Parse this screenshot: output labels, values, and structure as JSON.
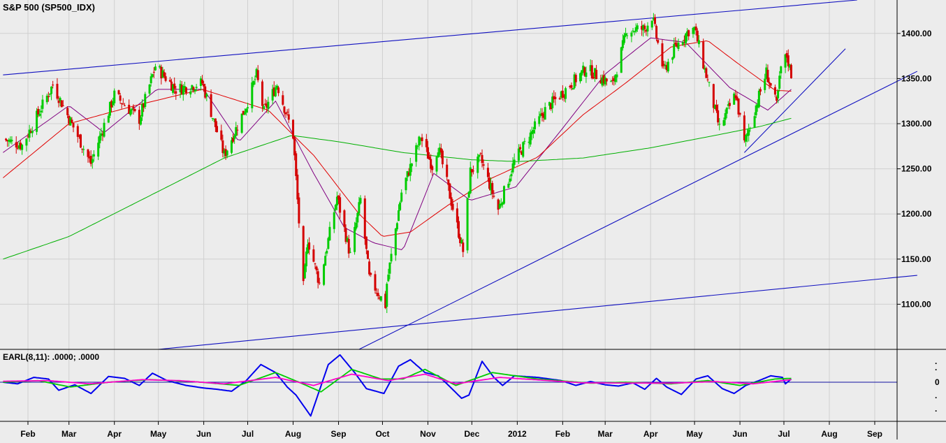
{
  "chart_data": [
    {
      "type": "candlestick",
      "title": "S&P 500 (SP500_IDX)",
      "y_ticks": [
        1100,
        1150,
        1200,
        1250,
        1300,
        1350,
        1400
      ],
      "y_tick_labels": [
        "1100.00",
        "1150.00",
        "1200.00",
        "1250.00",
        "1300.00",
        "1350.00",
        "1400.00"
      ],
      "ylim": [
        1050,
        1437
      ],
      "x_labels": [
        "Feb",
        "Mar",
        "Apr",
        "May",
        "Jun",
        "Jul",
        "Aug",
        "Sep",
        "Oct",
        "Nov",
        "Dec",
        "2012",
        "Feb",
        "Mar",
        "Apr",
        "May",
        "Jun",
        "Jul",
        "Aug",
        "Sep"
      ],
      "x_range": [
        "2011-01-15",
        "2012-09-28"
      ],
      "colors": {
        "up": "#00cc00",
        "down": "#d40000",
        "ma_short": "#800080",
        "ma_mid": "#e00000",
        "ma_long": "#00b000",
        "trendline": "#1010c0",
        "grid": "#d0d0d0"
      },
      "price_key_points": [
        [
          "2011-01-15",
          1283
        ],
        [
          "2011-01-28",
          1276
        ],
        [
          "2011-02-18",
          1343
        ],
        [
          "2011-03-16",
          1256
        ],
        [
          "2011-04-01",
          1332
        ],
        [
          "2011-04-18",
          1305
        ],
        [
          "2011-04-29",
          1364
        ],
        [
          "2011-05-13",
          1338
        ],
        [
          "2011-05-31",
          1345
        ],
        [
          "2011-06-15",
          1265
        ],
        [
          "2011-06-30",
          1320
        ],
        [
          "2011-07-07",
          1354
        ],
        [
          "2011-07-12",
          1313
        ],
        [
          "2011-07-21",
          1344
        ],
        [
          "2011-08-01",
          1287
        ],
        [
          "2011-08-08",
          1119
        ],
        [
          "2011-08-11",
          1172
        ],
        [
          "2011-08-19",
          1123
        ],
        [
          "2011-08-31",
          1219
        ],
        [
          "2011-09-09",
          1154
        ],
        [
          "2011-09-16",
          1216
        ],
        [
          "2011-09-22",
          1129
        ],
        [
          "2011-10-03",
          1099
        ],
        [
          "2011-10-04",
          1123
        ],
        [
          "2011-10-14",
          1224
        ],
        [
          "2011-10-27",
          1285
        ],
        [
          "2011-11-04",
          1253
        ],
        [
          "2011-11-08",
          1275
        ],
        [
          "2011-11-25",
          1159
        ],
        [
          "2011-11-30",
          1247
        ],
        [
          "2011-12-07",
          1261
        ],
        [
          "2011-12-19",
          1205
        ],
        [
          "2011-12-30",
          1258
        ],
        [
          "2012-01-20",
          1315
        ],
        [
          "2012-02-17",
          1361
        ],
        [
          "2012-03-06",
          1343
        ],
        [
          "2012-03-16",
          1404
        ],
        [
          "2012-03-28",
          1405
        ],
        [
          "2012-04-02",
          1419
        ],
        [
          "2012-04-10",
          1358
        ],
        [
          "2012-04-18",
          1385
        ],
        [
          "2012-04-27",
          1403
        ],
        [
          "2012-05-01",
          1405
        ],
        [
          "2012-05-18",
          1295
        ],
        [
          "2012-05-29",
          1333
        ],
        [
          "2012-06-04",
          1278
        ],
        [
          "2012-06-19",
          1357
        ],
        [
          "2012-06-26",
          1320
        ],
        [
          "2012-06-29",
          1362
        ],
        [
          "2012-07-03",
          1375
        ],
        [
          "2012-07-06",
          1355
        ]
      ],
      "moving_averages": [
        {
          "name": "",
          "color": "#800080",
          "points": [
            [
              "2011-01-15",
              1268
            ],
            [
              "2011-03-01",
              1320
            ],
            [
              "2011-03-25",
              1290
            ],
            [
              "2011-04-30",
              1338
            ],
            [
              "2011-06-01",
              1338
            ],
            [
              "2011-06-25",
              1280
            ],
            [
              "2011-07-20",
              1325
            ],
            [
              "2011-08-15",
              1245
            ],
            [
              "2011-09-05",
              1185
            ],
            [
              "2011-09-25",
              1168
            ],
            [
              "2011-10-15",
              1160
            ],
            [
              "2011-11-05",
              1245
            ],
            [
              "2011-11-30",
              1215
            ],
            [
              "2011-12-31",
              1230
            ],
            [
              "2012-02-01",
              1295
            ],
            [
              "2012-03-01",
              1355
            ],
            [
              "2012-04-01",
              1395
            ],
            [
              "2012-04-25",
              1390
            ],
            [
              "2012-05-25",
              1340
            ],
            [
              "2012-06-20",
              1315
            ],
            [
              "2012-07-06",
              1338
            ]
          ]
        },
        {
          "name": "",
          "color": "#e00000",
          "points": [
            [
              "2011-01-15",
              1240
            ],
            [
              "2011-03-01",
              1300
            ],
            [
              "2011-04-15",
              1320
            ],
            [
              "2011-05-31",
              1338
            ],
            [
              "2011-07-15",
              1315
            ],
            [
              "2011-08-15",
              1265
            ],
            [
              "2011-09-15",
              1200
            ],
            [
              "2011-10-01",
              1175
            ],
            [
              "2011-10-20",
              1180
            ],
            [
              "2011-11-15",
              1210
            ],
            [
              "2011-12-15",
              1240
            ],
            [
              "2012-01-15",
              1263
            ],
            [
              "2012-02-15",
              1310
            ],
            [
              "2012-03-15",
              1345
            ],
            [
              "2012-04-15",
              1385
            ],
            [
              "2012-05-10",
              1392
            ],
            [
              "2012-06-01",
              1365
            ],
            [
              "2012-06-25",
              1337
            ],
            [
              "2012-07-06",
              1336
            ]
          ]
        },
        {
          "name": "",
          "color": "#00b000",
          "points": [
            [
              "2011-01-15",
              1150
            ],
            [
              "2011-03-01",
              1175
            ],
            [
              "2011-05-01",
              1225
            ],
            [
              "2011-06-15",
              1262
            ],
            [
              "2011-07-31",
              1287
            ],
            [
              "2011-09-01",
              1280
            ],
            [
              "2011-10-15",
              1268
            ],
            [
              "2011-12-01",
              1260
            ],
            [
              "2012-01-01",
              1258
            ],
            [
              "2012-02-15",
              1262
            ],
            [
              "2012-03-31",
              1273
            ],
            [
              "2012-05-15",
              1287
            ],
            [
              "2012-06-15",
              1297
            ],
            [
              "2012-07-06",
              1306
            ]
          ]
        }
      ],
      "trendlines": [
        {
          "from": [
            "2011-01-15",
            1354
          ],
          "to": [
            "2012-08-20",
            1437
          ]
        },
        {
          "from": [
            "2011-05-01",
            1050
          ],
          "to": [
            "2012-09-30",
            1132
          ]
        },
        {
          "from": [
            "2011-09-15",
            1050
          ],
          "to": [
            "2012-09-30",
            1358
          ]
        },
        {
          "from": [
            "2012-06-04",
            1268
          ],
          "to": [
            "2012-08-12",
            1383
          ]
        }
      ]
    },
    {
      "type": "line",
      "title": "EARL(8,11): .0000; .0000",
      "y_ticks_labels": [
        ".",
        ".",
        "0",
        ".",
        "."
      ],
      "ylim": [
        -1,
        1
      ],
      "series": [
        {
          "name": "",
          "color": "#0000ee",
          "points": [
            [
              "2011-01-15",
              0.0
            ],
            [
              "2011-01-25",
              -0.05
            ],
            [
              "2011-02-05",
              0.15
            ],
            [
              "2011-02-15",
              0.1
            ],
            [
              "2011-02-22",
              -0.25
            ],
            [
              "2011-03-05",
              -0.08
            ],
            [
              "2011-03-16",
              -0.35
            ],
            [
              "2011-03-28",
              0.18
            ],
            [
              "2011-04-08",
              0.12
            ],
            [
              "2011-04-18",
              -0.1
            ],
            [
              "2011-04-27",
              0.28
            ],
            [
              "2011-05-07",
              0.05
            ],
            [
              "2011-05-20",
              -0.1
            ],
            [
              "2011-06-01",
              -0.18
            ],
            [
              "2011-06-10",
              -0.22
            ],
            [
              "2011-06-20",
              -0.28
            ],
            [
              "2011-06-30",
              0.05
            ],
            [
              "2011-07-10",
              0.55
            ],
            [
              "2011-07-20",
              0.3
            ],
            [
              "2011-07-28",
              -0.15
            ],
            [
              "2011-08-03",
              -0.4
            ],
            [
              "2011-08-13",
              -1.05
            ],
            [
              "2011-08-25",
              0.55
            ],
            [
              "2011-09-02",
              0.85
            ],
            [
              "2011-09-12",
              0.3
            ],
            [
              "2011-09-20",
              -0.2
            ],
            [
              "2011-10-02",
              -0.35
            ],
            [
              "2011-10-12",
              0.5
            ],
            [
              "2011-10-20",
              0.7
            ],
            [
              "2011-10-30",
              0.3
            ],
            [
              "2011-11-08",
              0.2
            ],
            [
              "2011-11-14",
              -0.05
            ],
            [
              "2011-11-24",
              -0.5
            ],
            [
              "2011-11-29",
              -0.4
            ],
            [
              "2011-12-08",
              0.65
            ],
            [
              "2011-12-16",
              0.15
            ],
            [
              "2011-12-22",
              -0.1
            ],
            [
              "2011-12-30",
              0.2
            ],
            [
              "2012-01-15",
              0.15
            ],
            [
              "2012-01-31",
              0.05
            ],
            [
              "2012-02-10",
              -0.1
            ],
            [
              "2012-02-20",
              0.02
            ],
            [
              "2012-03-01",
              -0.08
            ],
            [
              "2012-03-10",
              -0.12
            ],
            [
              "2012-03-20",
              -0.02
            ],
            [
              "2012-03-28",
              -0.22
            ],
            [
              "2012-04-05",
              0.12
            ],
            [
              "2012-04-12",
              -0.15
            ],
            [
              "2012-04-22",
              -0.38
            ],
            [
              "2012-05-02",
              0.1
            ],
            [
              "2012-05-10",
              0.2
            ],
            [
              "2012-05-20",
              -0.2
            ],
            [
              "2012-05-28",
              -0.35
            ],
            [
              "2012-06-05",
              -0.1
            ],
            [
              "2012-06-14",
              0.05
            ],
            [
              "2012-06-22",
              0.2
            ],
            [
              "2012-06-30",
              0.15
            ],
            [
              "2012-07-02",
              -0.05
            ],
            [
              "2012-07-06",
              0.1
            ]
          ]
        },
        {
          "name": "",
          "color": "#00cc00",
          "points": [
            [
              "2011-01-15",
              0.0
            ],
            [
              "2011-02-08",
              0.05
            ],
            [
              "2011-03-02",
              -0.15
            ],
            [
              "2011-03-28",
              0.0
            ],
            [
              "2011-04-25",
              0.08
            ],
            [
              "2011-05-25",
              0.02
            ],
            [
              "2011-06-25",
              -0.1
            ],
            [
              "2011-07-20",
              0.3
            ],
            [
              "2011-08-05",
              0.0
            ],
            [
              "2011-08-20",
              -0.3
            ],
            [
              "2011-09-10",
              0.4
            ],
            [
              "2011-09-30",
              0.1
            ],
            [
              "2011-10-15",
              0.1
            ],
            [
              "2011-10-30",
              0.4
            ],
            [
              "2011-11-20",
              -0.1
            ],
            [
              "2011-12-15",
              0.3
            ],
            [
              "2012-01-15",
              0.1
            ],
            [
              "2012-02-20",
              -0.03
            ],
            [
              "2012-03-15",
              0.0
            ],
            [
              "2012-04-15",
              -0.05
            ],
            [
              "2012-05-10",
              0.05
            ],
            [
              "2012-06-01",
              -0.1
            ],
            [
              "2012-06-25",
              0.1
            ],
            [
              "2012-07-06",
              0.12
            ]
          ]
        },
        {
          "name": "",
          "color": "#ff00cc",
          "points": [
            [
              "2011-01-15",
              0.03
            ],
            [
              "2011-02-15",
              0.05
            ],
            [
              "2011-03-15",
              -0.05
            ],
            [
              "2011-04-20",
              0.08
            ],
            [
              "2011-05-15",
              0.05
            ],
            [
              "2011-06-15",
              -0.05
            ],
            [
              "2011-07-20",
              0.15
            ],
            [
              "2011-08-15",
              -0.1
            ],
            [
              "2011-09-10",
              0.25
            ],
            [
              "2011-10-05",
              0.05
            ],
            [
              "2011-10-30",
              0.25
            ],
            [
              "2011-11-20",
              -0.05
            ],
            [
              "2011-12-20",
              0.15
            ],
            [
              "2012-02-15",
              -0.02
            ],
            [
              "2012-04-15",
              -0.03
            ],
            [
              "2012-05-15",
              0.02
            ],
            [
              "2012-06-10",
              -0.05
            ],
            [
              "2012-07-06",
              0.08
            ]
          ]
        }
      ]
    }
  ]
}
